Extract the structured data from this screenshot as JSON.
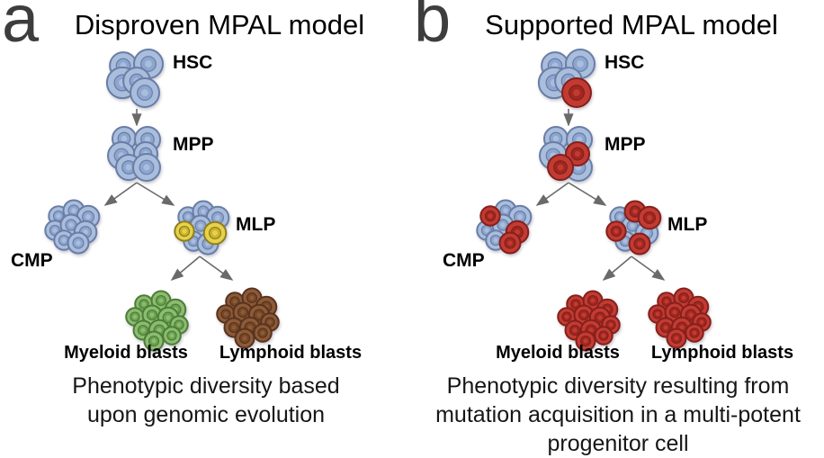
{
  "panels": [
    {
      "letter": "a",
      "title": "Disproven MPAL model",
      "nodes": {
        "hsc": "HSC",
        "mpp": "MPP",
        "cmp": "CMP",
        "mlp": "MLP",
        "myeloid": "Myeloid blasts",
        "lymphoid": "Lymphoid blasts"
      },
      "caption_lines": [
        "Phenotypic diversity based",
        "upon genomic evolution"
      ],
      "clusters": {
        "hsc": {
          "scheme": "blue",
          "mutant_scheme": null,
          "mutants": []
        },
        "mpp": {
          "scheme": "blue",
          "mutant_scheme": null,
          "mutants": []
        },
        "cmp": {
          "scheme": "blue",
          "mutant_scheme": null,
          "mutants": []
        },
        "mlp": {
          "scheme": "blue",
          "mutant_scheme": "yellow",
          "mutants": [
            3,
            5
          ]
        },
        "myeloid": {
          "scheme": "green",
          "mutant_scheme": null,
          "mutants": []
        },
        "lymphoid": {
          "scheme": "brown",
          "mutant_scheme": null,
          "mutants": []
        }
      }
    },
    {
      "letter": "b",
      "title": "Supported MPAL model",
      "nodes": {
        "hsc": "HSC",
        "mpp": "MPP",
        "cmp": "CMP",
        "mlp": "MLP",
        "myeloid": "Myeloid blasts",
        "lymphoid": "Lymphoid blasts"
      },
      "caption_lines": [
        "Phenotypic diversity resulting from",
        "mutation acquisition in a multi-potent",
        "progenitor cell"
      ],
      "clusters": {
        "hsc": {
          "scheme": "blue",
          "mutant_scheme": "red",
          "mutants": [
            4
          ]
        },
        "mpp": {
          "scheme": "blue",
          "mutant_scheme": "red",
          "mutants": [
            3,
            4
          ]
        },
        "cmp": {
          "scheme": "blue",
          "mutant_scheme": "red",
          "mutants": [
            0,
            5,
            7
          ]
        },
        "mlp": {
          "scheme": "blue",
          "mutant_scheme": "red",
          "mutants": [
            1,
            2,
            3,
            7
          ]
        },
        "myeloid": {
          "scheme": "red",
          "mutant_scheme": null,
          "mutants": []
        },
        "lymphoid": {
          "scheme": "red",
          "mutant_scheme": null,
          "mutants": []
        }
      }
    }
  ],
  "color_schemes": {
    "blue": {
      "fill": "#a9bedd",
      "mid": "#8da6cf",
      "stroke": "#697da6"
    },
    "yellow": {
      "fill": "#e5d24a",
      "mid": "#cdb32e",
      "stroke": "#8f7d1e"
    },
    "green": {
      "fill": "#8cbc72",
      "mid": "#6ba24f",
      "stroke": "#4d7c36"
    },
    "brown": {
      "fill": "#8d5a38",
      "mid": "#764827",
      "stroke": "#58331d"
    },
    "red": {
      "fill": "#c23b33",
      "mid": "#a1271f",
      "stroke": "#84201b"
    }
  },
  "arrow_color": "#6a6a6a",
  "letter_color": "#3d3d3d",
  "text_color": "#000000"
}
